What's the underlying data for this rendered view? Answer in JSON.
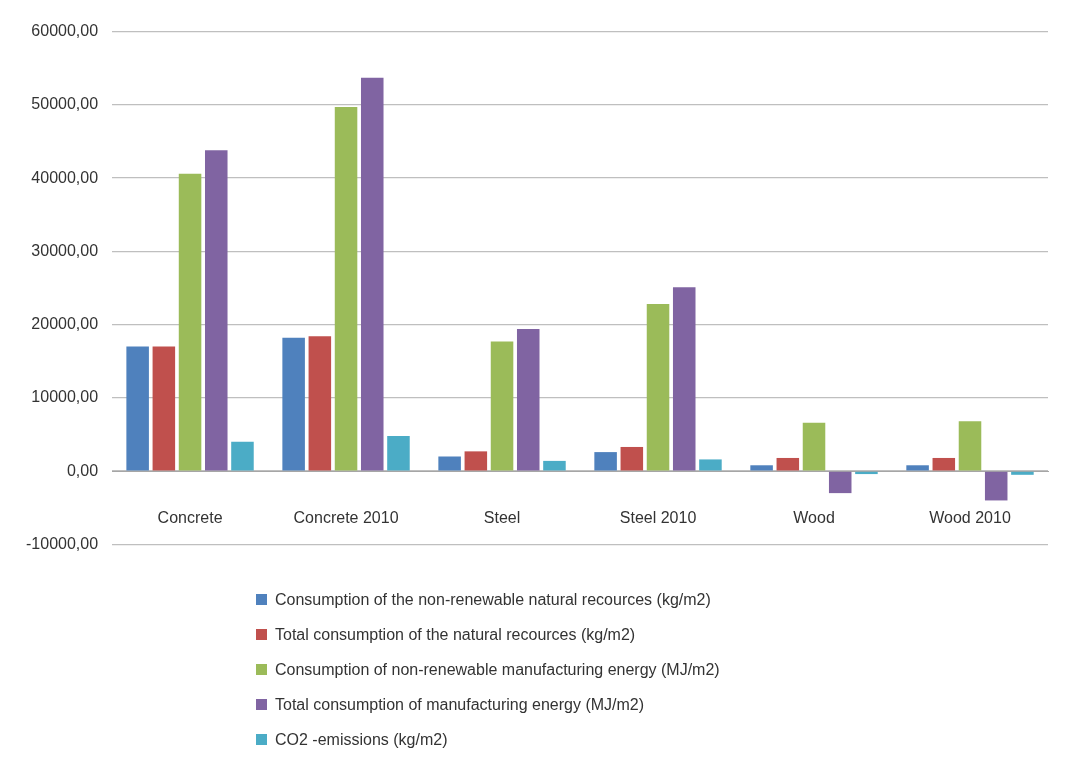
{
  "chart_data": {
    "type": "bar",
    "categories": [
      "Concrete",
      "Concrete 2010",
      "Steel",
      "Steel 2010",
      "Wood",
      "Wood 2010"
    ],
    "series": [
      {
        "name": "Consumption of the non-renewable natural recources (kg/m2)",
        "color": "#4f81bd",
        "values": [
          17000,
          18200,
          2000,
          2600,
          800,
          800
        ]
      },
      {
        "name": "Total consumption of the natural recources (kg/m2)",
        "color": "#c0504d",
        "values": [
          17000,
          18400,
          2700,
          3300,
          1800,
          1800
        ]
      },
      {
        "name": "Consumption of non-renewable manufacturing energy (MJ/m2)",
        "color": "#9bbb59",
        "values": [
          40600,
          49700,
          17700,
          22800,
          6600,
          6800
        ]
      },
      {
        "name": "Total consumption of manufacturing energy (MJ/m2)",
        "color": "#8064a2",
        "values": [
          43800,
          53700,
          19400,
          25100,
          -3000,
          -4000
        ]
      },
      {
        "name": "CO2 -emissions (kg/m2)",
        "color": "#4bacc6",
        "values": [
          4000,
          4800,
          1400,
          1600,
          -400,
          -500
        ]
      }
    ],
    "ylim": [
      -10000,
      60000
    ],
    "yticks": [
      {
        "value": -10000,
        "label": "-10000,00"
      },
      {
        "value": 0,
        "label": "0,00"
      },
      {
        "value": 10000,
        "label": "10000,00"
      },
      {
        "value": 20000,
        "label": "20000,00"
      },
      {
        "value": 30000,
        "label": "30000,00"
      },
      {
        "value": 40000,
        "label": "40000,00"
      },
      {
        "value": 50000,
        "label": "50000,00"
      },
      {
        "value": 60000,
        "label": "60000,00"
      }
    ],
    "grid": "y",
    "legend": "bottom"
  }
}
